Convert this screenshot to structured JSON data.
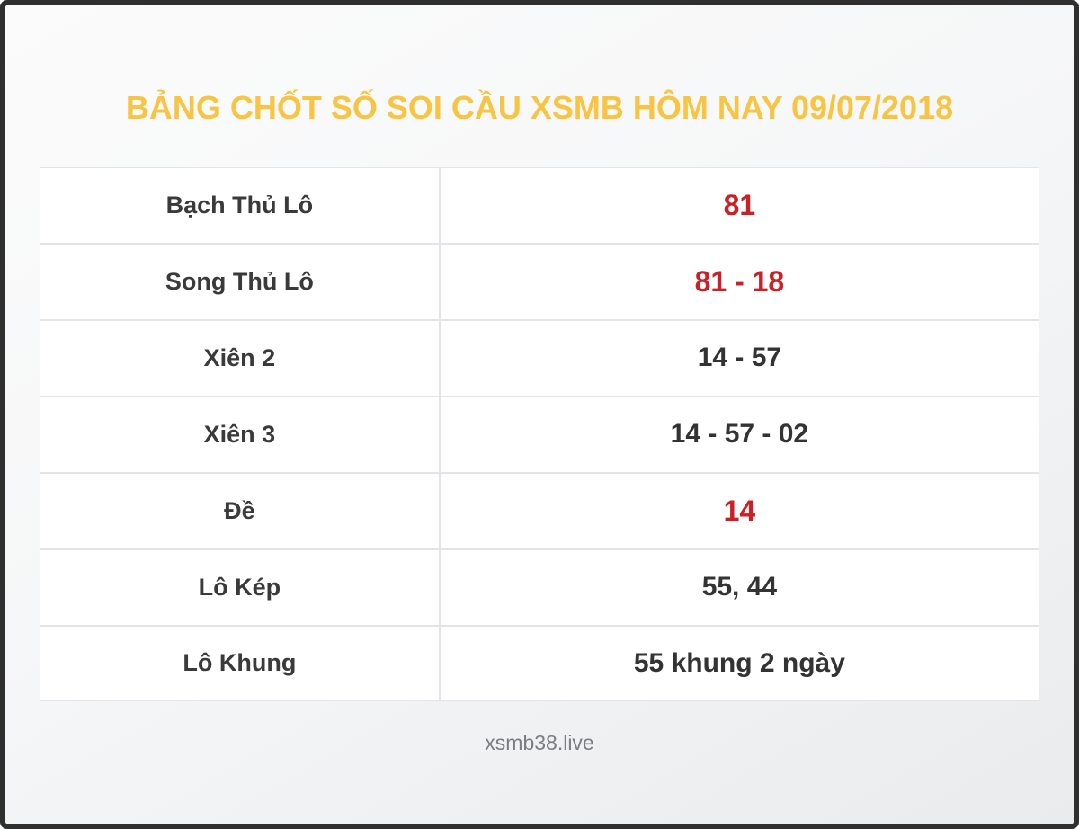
{
  "page": {
    "title": "BẢNG CHỐT SỐ SOI CẦU XSMB HÔM NAY 09/07/2018",
    "footer": "xsmb38.live"
  },
  "colors": {
    "title_yellow": "#f7c543",
    "highlight_red": "#cb2026",
    "value_dark": "#333333",
    "label_dark": "#3a3a3a",
    "frame_border": "#2f2f2f",
    "cell_border": "#e3e4e7",
    "cell_background": "#ffffff"
  },
  "table": {
    "rows": [
      {
        "label": "Bạch Thủ Lô",
        "value": "81",
        "highlight": true
      },
      {
        "label": "Song Thủ Lô",
        "value": "81 - 18",
        "highlight": true
      },
      {
        "label": "Xiên 2",
        "value": "14 - 57",
        "highlight": false
      },
      {
        "label": "Xiên 3",
        "value": "14 - 57 - 02",
        "highlight": false
      },
      {
        "label": "Đề",
        "value": "14",
        "highlight": true
      },
      {
        "label": "Lô Kép",
        "value": "55, 44",
        "highlight": false
      },
      {
        "label": "Lô Khung",
        "value": "55 khung 2 ngày",
        "highlight": false
      }
    ]
  }
}
